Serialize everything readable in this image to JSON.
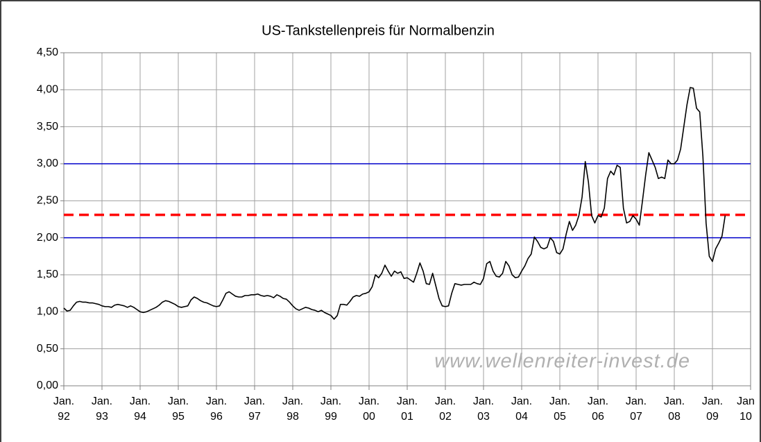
{
  "chart_data": {
    "type": "line",
    "title": "US-Tankstellenpreis für Normalbenzin",
    "watermark": "www.wellenreiter-invest.de",
    "x": [
      "1992-01",
      "1992-02",
      "1992-03",
      "1992-04",
      "1992-05",
      "1992-06",
      "1992-07",
      "1992-08",
      "1992-09",
      "1992-10",
      "1992-11",
      "1992-12",
      "1993-01",
      "1993-02",
      "1993-03",
      "1993-04",
      "1993-05",
      "1993-06",
      "1993-07",
      "1993-08",
      "1993-09",
      "1993-10",
      "1993-11",
      "1993-12",
      "1994-01",
      "1994-02",
      "1994-03",
      "1994-04",
      "1994-05",
      "1994-06",
      "1994-07",
      "1994-08",
      "1994-09",
      "1994-10",
      "1994-11",
      "1994-12",
      "1995-01",
      "1995-02",
      "1995-03",
      "1995-04",
      "1995-05",
      "1995-06",
      "1995-07",
      "1995-08",
      "1995-09",
      "1995-10",
      "1995-11",
      "1995-12",
      "1996-01",
      "1996-02",
      "1996-03",
      "1996-04",
      "1996-05",
      "1996-06",
      "1996-07",
      "1996-08",
      "1996-09",
      "1996-10",
      "1996-11",
      "1996-12",
      "1997-01",
      "1997-02",
      "1997-03",
      "1997-04",
      "1997-05",
      "1997-06",
      "1997-07",
      "1997-08",
      "1997-09",
      "1997-10",
      "1997-11",
      "1997-12",
      "1998-01",
      "1998-02",
      "1998-03",
      "1998-04",
      "1998-05",
      "1998-06",
      "1998-07",
      "1998-08",
      "1998-09",
      "1998-10",
      "1998-11",
      "1998-12",
      "1999-01",
      "1999-02",
      "1999-03",
      "1999-04",
      "1999-05",
      "1999-06",
      "1999-07",
      "1999-08",
      "1999-09",
      "1999-10",
      "1999-11",
      "1999-12",
      "2000-01",
      "2000-02",
      "2000-03",
      "2000-04",
      "2000-05",
      "2000-06",
      "2000-07",
      "2000-08",
      "2000-09",
      "2000-10",
      "2000-11",
      "2000-12",
      "2001-01",
      "2001-02",
      "2001-03",
      "2001-04",
      "2001-05",
      "2001-06",
      "2001-07",
      "2001-08",
      "2001-09",
      "2001-10",
      "2001-11",
      "2001-12",
      "2002-01",
      "2002-02",
      "2002-03",
      "2002-04",
      "2002-05",
      "2002-06",
      "2002-07",
      "2002-08",
      "2002-09",
      "2002-10",
      "2002-11",
      "2002-12",
      "2003-01",
      "2003-02",
      "2003-03",
      "2003-04",
      "2003-05",
      "2003-06",
      "2003-07",
      "2003-08",
      "2003-09",
      "2003-10",
      "2003-11",
      "2003-12",
      "2004-01",
      "2004-02",
      "2004-03",
      "2004-04",
      "2004-05",
      "2004-06",
      "2004-07",
      "2004-08",
      "2004-09",
      "2004-10",
      "2004-11",
      "2004-12",
      "2005-01",
      "2005-02",
      "2005-03",
      "2005-04",
      "2005-05",
      "2005-06",
      "2005-07",
      "2005-08",
      "2005-09",
      "2005-10",
      "2005-11",
      "2005-12",
      "2006-01",
      "2006-02",
      "2006-03",
      "2006-04",
      "2006-05",
      "2006-06",
      "2006-07",
      "2006-08",
      "2006-09",
      "2006-10",
      "2006-11",
      "2006-12",
      "2007-01",
      "2007-02",
      "2007-03",
      "2007-04",
      "2007-05",
      "2007-06",
      "2007-07",
      "2007-08",
      "2007-09",
      "2007-10",
      "2007-11",
      "2007-12",
      "2008-01",
      "2008-02",
      "2008-03",
      "2008-04",
      "2008-05",
      "2008-06",
      "2008-07",
      "2008-08",
      "2008-09",
      "2008-10",
      "2008-11",
      "2008-12",
      "2009-01",
      "2009-02",
      "2009-03",
      "2009-04",
      "2009-05"
    ],
    "series": [
      {
        "color": "#000000",
        "values": [
          1.05,
          1.01,
          1.02,
          1.08,
          1.13,
          1.14,
          1.13,
          1.13,
          1.12,
          1.12,
          1.11,
          1.1,
          1.08,
          1.07,
          1.07,
          1.06,
          1.09,
          1.1,
          1.09,
          1.08,
          1.06,
          1.08,
          1.06,
          1.03,
          1.0,
          0.99,
          1.0,
          1.02,
          1.04,
          1.06,
          1.09,
          1.13,
          1.15,
          1.14,
          1.12,
          1.1,
          1.07,
          1.06,
          1.07,
          1.08,
          1.16,
          1.2,
          1.18,
          1.15,
          1.13,
          1.12,
          1.1,
          1.08,
          1.07,
          1.08,
          1.16,
          1.25,
          1.27,
          1.24,
          1.21,
          1.2,
          1.2,
          1.22,
          1.22,
          1.23,
          1.23,
          1.24,
          1.22,
          1.21,
          1.22,
          1.21,
          1.19,
          1.23,
          1.21,
          1.18,
          1.17,
          1.13,
          1.08,
          1.04,
          1.02,
          1.04,
          1.06,
          1.05,
          1.03,
          1.02,
          1.0,
          1.02,
          0.99,
          0.97,
          0.95,
          0.9,
          0.95,
          1.1,
          1.1,
          1.09,
          1.14,
          1.2,
          1.22,
          1.21,
          1.24,
          1.25,
          1.27,
          1.34,
          1.5,
          1.46,
          1.52,
          1.63,
          1.55,
          1.48,
          1.55,
          1.52,
          1.54,
          1.45,
          1.46,
          1.43,
          1.4,
          1.52,
          1.66,
          1.55,
          1.38,
          1.37,
          1.52,
          1.35,
          1.18,
          1.08,
          1.07,
          1.08,
          1.25,
          1.38,
          1.37,
          1.36,
          1.37,
          1.37,
          1.37,
          1.4,
          1.38,
          1.37,
          1.45,
          1.65,
          1.68,
          1.55,
          1.48,
          1.47,
          1.52,
          1.68,
          1.62,
          1.5,
          1.46,
          1.47,
          1.55,
          1.62,
          1.72,
          1.78,
          2.01,
          1.95,
          1.87,
          1.85,
          1.87,
          2.0,
          1.95,
          1.8,
          1.78,
          1.85,
          2.05,
          2.22,
          2.1,
          2.17,
          2.3,
          2.55,
          3.03,
          2.75,
          2.3,
          2.2,
          2.3,
          2.28,
          2.4,
          2.8,
          2.9,
          2.85,
          2.98,
          2.95,
          2.4,
          2.2,
          2.22,
          2.3,
          2.25,
          2.17,
          2.5,
          2.85,
          3.15,
          3.05,
          2.95,
          2.8,
          2.82,
          2.8,
          3.05,
          3.0,
          3.0,
          3.05,
          3.2,
          3.5,
          3.8,
          4.03,
          4.02,
          3.75,
          3.7,
          3.1,
          2.2,
          1.75,
          1.68,
          1.85,
          1.93,
          2.02,
          2.3
        ]
      }
    ],
    "reference_lines": [
      {
        "value": 3,
        "color": "#0000cc",
        "style": "solid"
      },
      {
        "value": 2,
        "color": "#0000cc",
        "style": "solid"
      },
      {
        "value": 2.31,
        "color": "#ff0000",
        "style": "dashed"
      }
    ],
    "xlim": [
      "1992-01",
      "2010-01"
    ],
    "xticks": [
      {
        "value": "1992-01",
        "label": "Jan. 92"
      },
      {
        "value": "1993-01",
        "label": "Jan. 93"
      },
      {
        "value": "1994-01",
        "label": "Jan. 94"
      },
      {
        "value": "1995-01",
        "label": "Jan. 95"
      },
      {
        "value": "1996-01",
        "label": "Jan. 96"
      },
      {
        "value": "1997-01",
        "label": "Jan. 97"
      },
      {
        "value": "1998-01",
        "label": "Jan. 98"
      },
      {
        "value": "1999-01",
        "label": "Jan. 99"
      },
      {
        "value": "2000-01",
        "label": "Jan. 00"
      },
      {
        "value": "2001-01",
        "label": "Jan. 01"
      },
      {
        "value": "2002-01",
        "label": "Jan. 02"
      },
      {
        "value": "2003-01",
        "label": "Jan. 03"
      },
      {
        "value": "2004-01",
        "label": "Jan. 04"
      },
      {
        "value": "2005-01",
        "label": "Jan. 05"
      },
      {
        "value": "2006-01",
        "label": "Jan. 06"
      },
      {
        "value": "2007-01",
        "label": "Jan. 07"
      },
      {
        "value": "2008-01",
        "label": "Jan. 08"
      },
      {
        "value": "2009-01",
        "label": "Jan. 09"
      },
      {
        "value": "2010-01",
        "label": "Jan 10"
      }
    ],
    "ylim": [
      0,
      4.5
    ],
    "yticks": [
      {
        "value": 0,
        "label": "0,00"
      },
      {
        "value": 0.5,
        "label": "0,50"
      },
      {
        "value": 1,
        "label": "1,00"
      },
      {
        "value": 1.5,
        "label": "1,50"
      },
      {
        "value": 2,
        "label": "2,00"
      },
      {
        "value": 2.5,
        "label": "2,50"
      },
      {
        "value": 3,
        "label": "3,00"
      },
      {
        "value": 3.5,
        "label": "3,50"
      },
      {
        "value": 4,
        "label": "4,00"
      },
      {
        "value": 4.5,
        "label": "4,50"
      }
    ],
    "grid": true
  }
}
